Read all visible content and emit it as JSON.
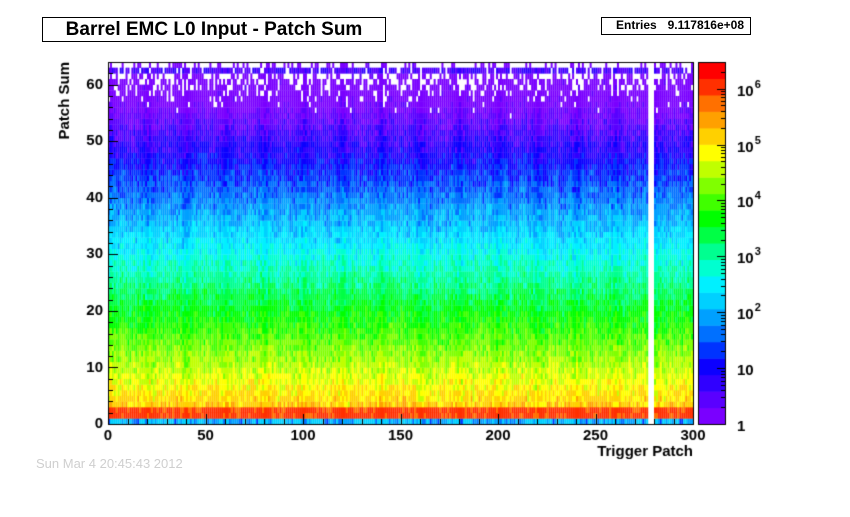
{
  "title": "Barrel EMC L0 Input - Patch Sum",
  "stats": {
    "entries_label": "Entries",
    "entries_value": "9.117816e+08"
  },
  "footer_text": "Sun Mar  4 20:45:43 2012",
  "chart_data": {
    "type": "heatmap",
    "title": "Barrel EMC L0 Input - Patch Sum",
    "xlabel": "Trigger Patch",
    "ylabel": "Patch Sum",
    "xlim": [
      0,
      300
    ],
    "ylim": [
      0,
      64
    ],
    "x_ticks": [
      0,
      50,
      100,
      150,
      200,
      250,
      300
    ],
    "y_ticks": [
      0,
      10,
      20,
      30,
      40,
      50,
      60
    ],
    "z_scale": "log",
    "z_range": [
      1,
      3000000
    ],
    "z_tick_labels": [
      {
        "value": 1,
        "base": "1",
        "exp": ""
      },
      {
        "value": 10,
        "base": "10",
        "exp": ""
      },
      {
        "value": 100,
        "base": "10",
        "exp": "2"
      },
      {
        "value": 1000,
        "base": "10",
        "exp": "3"
      },
      {
        "value": 10000,
        "base": "10",
        "exp": "4"
      },
      {
        "value": 100000,
        "base": "10",
        "exp": "5"
      },
      {
        "value": 1000000,
        "base": "10",
        "exp": "6"
      }
    ],
    "palette": [
      "#7a00ff",
      "#5a00ff",
      "#3000ff",
      "#0c00ff",
      "#0033ff",
      "#0070ff",
      "#00a0ff",
      "#00d0ff",
      "#00f0ff",
      "#00ffd0",
      "#00ff90",
      "#00ff45",
      "#00ff00",
      "#40ff00",
      "#80ff00",
      "#c0ff00",
      "#ffff00",
      "#ffd000",
      "#ffa000",
      "#ff7000",
      "#ff3000",
      "#ff0000"
    ],
    "dead_patches": [
      277,
      278,
      279
    ],
    "overflow_bin": 62,
    "description_of_distribution": {
      "peak_bins": [
        1,
        2
      ],
      "peak_count": 1000000,
      "falloff_scale_per_bin": 0.22
    }
  }
}
